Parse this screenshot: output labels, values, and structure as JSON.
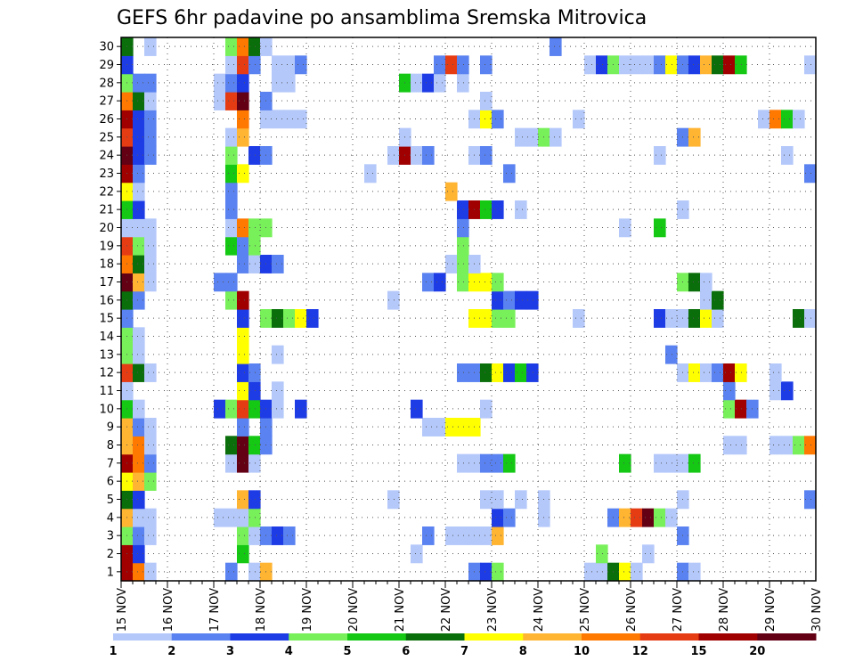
{
  "chart_data": {
    "type": "heatmap",
    "title": "GEFS 6hr padavine po ansamblima Sremska Mitrovica",
    "x_ticks": [
      "15 NOV",
      "16 NOV",
      "17 NOV",
      "18 NOV",
      "19 NOV",
      "20 NOV",
      "21 NOV",
      "22 NOV",
      "23 NOV",
      "24 NOV",
      "25 NOV",
      "26 NOV",
      "27 NOV",
      "28 NOV",
      "29 NOV",
      "30 NOV"
    ],
    "y_ticks": [
      1,
      2,
      3,
      4,
      5,
      6,
      7,
      8,
      9,
      10,
      11,
      12,
      13,
      14,
      15,
      16,
      17,
      18,
      19,
      20,
      21,
      22,
      23,
      24,
      25,
      26,
      27,
      28,
      29,
      30
    ],
    "x_range": [
      15,
      30
    ],
    "y_range": [
      0.5,
      30.5
    ],
    "step_hours": 6,
    "grid": true,
    "legend_placement": "bottom",
    "legend": {
      "labels": [
        "1",
        "2",
        "3",
        "4",
        "5",
        "6",
        "7",
        "8",
        "10",
        "12",
        "15",
        "20"
      ],
      "colors": [
        "#b4c8fa",
        "#5a82f0",
        "#1e3ce6",
        "#78f05a",
        "#14c814",
        "#0a6e0a",
        "#ffff00",
        "#ffb432",
        "#ff7800",
        "#e63c14",
        "#a00000",
        "#640014"
      ]
    },
    "cells": [
      [
        1,
        15.0,
        11
      ],
      [
        1,
        15.25,
        9
      ],
      [
        1,
        15.5,
        1
      ],
      [
        1,
        17.25,
        2
      ],
      [
        1,
        17.75,
        1
      ],
      [
        1,
        18.0,
        8
      ],
      [
        1,
        22.5,
        2
      ],
      [
        1,
        22.75,
        3
      ],
      [
        1,
        23.0,
        4
      ],
      [
        1,
        25.0,
        1
      ],
      [
        1,
        25.25,
        1
      ],
      [
        1,
        25.5,
        6
      ],
      [
        1,
        25.75,
        7
      ],
      [
        1,
        26.0,
        1
      ],
      [
        1,
        27.0,
        2
      ],
      [
        1,
        27.25,
        1
      ],
      [
        2,
        15.0,
        11
      ],
      [
        2,
        15.25,
        3
      ],
      [
        2,
        17.5,
        5
      ],
      [
        2,
        21.25,
        1
      ],
      [
        2,
        25.25,
        4
      ],
      [
        2,
        26.25,
        1
      ],
      [
        3,
        15.0,
        4
      ],
      [
        3,
        15.25,
        2
      ],
      [
        3,
        15.5,
        1
      ],
      [
        3,
        17.5,
        4
      ],
      [
        3,
        17.75,
        1
      ],
      [
        3,
        18.0,
        2
      ],
      [
        3,
        18.25,
        3
      ],
      [
        3,
        18.5,
        2
      ],
      [
        3,
        21.5,
        2
      ],
      [
        3,
        22.0,
        1
      ],
      [
        3,
        22.25,
        1
      ],
      [
        3,
        22.5,
        1
      ],
      [
        3,
        22.75,
        1
      ],
      [
        3,
        23.0,
        8
      ],
      [
        3,
        27.0,
        2
      ],
      [
        4,
        15.0,
        8
      ],
      [
        4,
        15.25,
        1
      ],
      [
        4,
        15.5,
        1
      ],
      [
        4,
        17.0,
        1
      ],
      [
        4,
        17.25,
        1
      ],
      [
        4,
        17.5,
        1
      ],
      [
        4,
        17.75,
        4
      ],
      [
        4,
        23.0,
        3
      ],
      [
        4,
        23.25,
        2
      ],
      [
        4,
        24.0,
        1
      ],
      [
        4,
        25.5,
        2
      ],
      [
        4,
        25.75,
        8
      ],
      [
        4,
        26.0,
        10
      ],
      [
        4,
        26.25,
        12
      ],
      [
        4,
        26.5,
        4
      ],
      [
        4,
        26.75,
        1
      ],
      [
        5,
        15.0,
        6
      ],
      [
        5,
        15.25,
        3
      ],
      [
        5,
        17.5,
        8
      ],
      [
        5,
        17.75,
        3
      ],
      [
        5,
        20.75,
        1
      ],
      [
        5,
        22.75,
        1
      ],
      [
        5,
        23.0,
        1
      ],
      [
        5,
        23.5,
        1
      ],
      [
        5,
        24.0,
        1
      ],
      [
        5,
        27.0,
        1
      ],
      [
        5,
        29.75,
        2
      ],
      [
        6,
        15.0,
        7
      ],
      [
        6,
        15.25,
        8
      ],
      [
        6,
        15.5,
        4
      ],
      [
        7,
        15.0,
        11
      ],
      [
        7,
        15.25,
        9
      ],
      [
        7,
        15.5,
        2
      ],
      [
        7,
        17.25,
        1
      ],
      [
        7,
        17.5,
        12
      ],
      [
        7,
        17.75,
        1
      ],
      [
        7,
        22.25,
        1
      ],
      [
        7,
        22.5,
        1
      ],
      [
        7,
        22.75,
        2
      ],
      [
        7,
        23.0,
        2
      ],
      [
        7,
        23.25,
        5
      ],
      [
        7,
        25.75,
        5
      ],
      [
        7,
        26.5,
        1
      ],
      [
        7,
        26.75,
        1
      ],
      [
        7,
        27.0,
        1
      ],
      [
        7,
        27.25,
        5
      ],
      [
        8,
        15.0,
        8
      ],
      [
        8,
        15.25,
        9
      ],
      [
        8,
        15.5,
        1
      ],
      [
        8,
        17.25,
        6
      ],
      [
        8,
        17.5,
        12
      ],
      [
        8,
        17.75,
        5
      ],
      [
        8,
        18.0,
        2
      ],
      [
        8,
        28.0,
        1
      ],
      [
        8,
        28.25,
        1
      ],
      [
        8,
        29.0,
        1
      ],
      [
        8,
        29.25,
        1
      ],
      [
        8,
        29.5,
        4
      ],
      [
        8,
        29.75,
        9
      ],
      [
        9,
        15.0,
        8
      ],
      [
        9,
        15.25,
        2
      ],
      [
        9,
        15.5,
        1
      ],
      [
        9,
        17.5,
        2
      ],
      [
        9,
        18.0,
        2
      ],
      [
        9,
        21.5,
        1
      ],
      [
        9,
        21.75,
        1
      ],
      [
        9,
        22.0,
        7
      ],
      [
        9,
        22.25,
        7
      ],
      [
        9,
        22.5,
        7
      ],
      [
        10,
        15.0,
        5
      ],
      [
        10,
        15.25,
        1
      ],
      [
        10,
        17.0,
        3
      ],
      [
        10,
        17.25,
        4
      ],
      [
        10,
        17.5,
        10
      ],
      [
        10,
        17.75,
        5
      ],
      [
        10,
        18.0,
        3
      ],
      [
        10,
        18.25,
        1
      ],
      [
        10,
        18.75,
        3
      ],
      [
        10,
        21.25,
        3
      ],
      [
        10,
        22.75,
        1
      ],
      [
        10,
        28.0,
        4
      ],
      [
        10,
        28.25,
        11
      ],
      [
        10,
        28.5,
        2
      ],
      [
        11,
        15.0,
        1
      ],
      [
        11,
        17.5,
        7
      ],
      [
        11,
        17.75,
        3
      ],
      [
        11,
        18.25,
        1
      ],
      [
        11,
        28.0,
        2
      ],
      [
        11,
        29.0,
        1
      ],
      [
        11,
        29.25,
        3
      ],
      [
        12,
        15.0,
        10
      ],
      [
        12,
        15.25,
        6
      ],
      [
        12,
        15.5,
        1
      ],
      [
        12,
        17.5,
        3
      ],
      [
        12,
        17.75,
        2
      ],
      [
        12,
        22.25,
        2
      ],
      [
        12,
        22.5,
        2
      ],
      [
        12,
        22.75,
        6
      ],
      [
        12,
        23.0,
        7
      ],
      [
        12,
        23.25,
        3
      ],
      [
        12,
        23.5,
        5
      ],
      [
        12,
        23.75,
        3
      ],
      [
        12,
        27.0,
        1
      ],
      [
        12,
        27.25,
        7
      ],
      [
        12,
        27.5,
        1
      ],
      [
        12,
        27.75,
        2
      ],
      [
        12,
        28.0,
        11
      ],
      [
        12,
        28.25,
        7
      ],
      [
        12,
        29.0,
        1
      ],
      [
        13,
        15.0,
        4
      ],
      [
        13,
        15.25,
        1
      ],
      [
        13,
        17.5,
        7
      ],
      [
        13,
        18.25,
        1
      ],
      [
        13,
        26.75,
        2
      ],
      [
        14,
        15.0,
        4
      ],
      [
        14,
        15.25,
        1
      ],
      [
        14,
        17.5,
        7
      ],
      [
        15,
        15.0,
        2
      ],
      [
        15,
        17.5,
        3
      ],
      [
        15,
        18.0,
        4
      ],
      [
        15,
        18.25,
        6
      ],
      [
        15,
        18.5,
        4
      ],
      [
        15,
        18.75,
        7
      ],
      [
        15,
        19.0,
        3
      ],
      [
        15,
        22.5,
        7
      ],
      [
        15,
        22.75,
        7
      ],
      [
        15,
        23.0,
        4
      ],
      [
        15,
        23.25,
        4
      ],
      [
        15,
        24.75,
        1
      ],
      [
        15,
        26.5,
        3
      ],
      [
        15,
        26.75,
        1
      ],
      [
        15,
        27.0,
        1
      ],
      [
        15,
        27.25,
        6
      ],
      [
        15,
        27.5,
        7
      ],
      [
        15,
        27.75,
        1
      ],
      [
        15,
        29.5,
        6
      ],
      [
        15,
        29.75,
        1
      ],
      [
        16,
        15.0,
        6
      ],
      [
        16,
        15.25,
        2
      ],
      [
        16,
        17.25,
        4
      ],
      [
        16,
        17.5,
        11
      ],
      [
        16,
        20.75,
        1
      ],
      [
        16,
        23.0,
        3
      ],
      [
        16,
        23.25,
        2
      ],
      [
        16,
        23.5,
        3
      ],
      [
        16,
        23.75,
        3
      ],
      [
        16,
        27.5,
        1
      ],
      [
        16,
        27.75,
        6
      ],
      [
        17,
        15.0,
        12
      ],
      [
        17,
        15.25,
        8
      ],
      [
        17,
        15.5,
        1
      ],
      [
        17,
        17.0,
        2
      ],
      [
        17,
        17.25,
        2
      ],
      [
        17,
        21.5,
        2
      ],
      [
        17,
        21.75,
        3
      ],
      [
        17,
        22.25,
        4
      ],
      [
        17,
        22.5,
        7
      ],
      [
        17,
        22.75,
        7
      ],
      [
        17,
        23.0,
        4
      ],
      [
        17,
        27.0,
        4
      ],
      [
        17,
        27.25,
        6
      ],
      [
        17,
        27.5,
        1
      ],
      [
        18,
        15.0,
        9
      ],
      [
        18,
        15.25,
        6
      ],
      [
        18,
        15.5,
        1
      ],
      [
        18,
        17.5,
        2
      ],
      [
        18,
        17.75,
        1
      ],
      [
        18,
        18.0,
        3
      ],
      [
        18,
        18.25,
        2
      ],
      [
        18,
        22.0,
        1
      ],
      [
        18,
        22.25,
        4
      ],
      [
        18,
        22.5,
        1
      ],
      [
        19,
        15.0,
        10
      ],
      [
        19,
        15.25,
        4
      ],
      [
        19,
        15.5,
        1
      ],
      [
        19,
        17.25,
        5
      ],
      [
        19,
        17.5,
        2
      ],
      [
        19,
        17.75,
        4
      ],
      [
        19,
        22.25,
        4
      ],
      [
        20,
        15.0,
        1
      ],
      [
        20,
        15.25,
        1
      ],
      [
        20,
        15.5,
        1
      ],
      [
        20,
        17.25,
        1
      ],
      [
        20,
        17.5,
        9
      ],
      [
        20,
        17.75,
        4
      ],
      [
        20,
        18.0,
        4
      ],
      [
        20,
        22.25,
        2
      ],
      [
        20,
        25.75,
        1
      ],
      [
        20,
        26.5,
        5
      ],
      [
        21,
        15.0,
        5
      ],
      [
        21,
        15.25,
        3
      ],
      [
        21,
        17.25,
        2
      ],
      [
        21,
        22.25,
        3
      ],
      [
        21,
        22.5,
        11
      ],
      [
        21,
        22.75,
        5
      ],
      [
        21,
        23.0,
        3
      ],
      [
        21,
        23.5,
        1
      ],
      [
        21,
        27.0,
        1
      ],
      [
        22,
        15.0,
        7
      ],
      [
        22,
        15.25,
        1
      ],
      [
        22,
        17.25,
        2
      ],
      [
        22,
        22.0,
        8
      ],
      [
        23,
        15.0,
        11
      ],
      [
        23,
        15.25,
        2
      ],
      [
        23,
        17.25,
        5
      ],
      [
        23,
        17.5,
        7
      ],
      [
        23,
        20.25,
        1
      ],
      [
        23,
        23.25,
        2
      ],
      [
        23,
        29.75,
        2
      ],
      [
        24,
        15.0,
        12
      ],
      [
        24,
        15.25,
        3
      ],
      [
        24,
        15.5,
        2
      ],
      [
        24,
        17.25,
        4
      ],
      [
        24,
        17.75,
        3
      ],
      [
        24,
        18.0,
        2
      ],
      [
        24,
        20.75,
        1
      ],
      [
        24,
        21.0,
        11
      ],
      [
        24,
        21.25,
        1
      ],
      [
        24,
        21.5,
        2
      ],
      [
        24,
        22.5,
        1
      ],
      [
        24,
        22.75,
        2
      ],
      [
        24,
        26.5,
        1
      ],
      [
        24,
        29.25,
        1
      ],
      [
        25,
        15.0,
        10
      ],
      [
        25,
        15.25,
        3
      ],
      [
        25,
        15.5,
        2
      ],
      [
        25,
        17.25,
        1
      ],
      [
        25,
        17.5,
        8
      ],
      [
        25,
        21.0,
        1
      ],
      [
        25,
        23.5,
        1
      ],
      [
        25,
        23.75,
        1
      ],
      [
        25,
        24.0,
        4
      ],
      [
        25,
        24.25,
        1
      ],
      [
        25,
        27.0,
        2
      ],
      [
        25,
        27.25,
        8
      ],
      [
        26,
        15.0,
        11
      ],
      [
        26,
        15.25,
        3
      ],
      [
        26,
        15.5,
        2
      ],
      [
        26,
        17.5,
        9
      ],
      [
        26,
        18.0,
        1
      ],
      [
        26,
        18.25,
        1
      ],
      [
        26,
        18.5,
        1
      ],
      [
        26,
        18.75,
        1
      ],
      [
        26,
        22.5,
        1
      ],
      [
        26,
        22.75,
        7
      ],
      [
        26,
        23.0,
        2
      ],
      [
        26,
        24.75,
        1
      ],
      [
        26,
        28.75,
        1
      ],
      [
        26,
        29.0,
        9
      ],
      [
        26,
        29.25,
        5
      ],
      [
        26,
        29.5,
        1
      ],
      [
        27,
        15.0,
        9
      ],
      [
        27,
        15.25,
        6
      ],
      [
        27,
        15.5,
        1
      ],
      [
        27,
        17.0,
        1
      ],
      [
        27,
        17.25,
        10
      ],
      [
        27,
        17.5,
        12
      ],
      [
        27,
        18.0,
        2
      ],
      [
        27,
        22.75,
        1
      ],
      [
        28,
        15.0,
        4
      ],
      [
        28,
        15.25,
        2
      ],
      [
        28,
        15.5,
        2
      ],
      [
        28,
        17.0,
        1
      ],
      [
        28,
        17.25,
        2
      ],
      [
        28,
        17.5,
        3
      ],
      [
        28,
        18.25,
        1
      ],
      [
        28,
        18.5,
        1
      ],
      [
        28,
        21.0,
        5
      ],
      [
        28,
        21.25,
        1
      ],
      [
        28,
        21.5,
        3
      ],
      [
        28,
        21.75,
        1
      ],
      [
        28,
        22.25,
        1
      ],
      [
        29,
        15.0,
        3
      ],
      [
        29,
        17.25,
        1
      ],
      [
        29,
        17.5,
        10
      ],
      [
        29,
        17.75,
        2
      ],
      [
        29,
        18.25,
        1
      ],
      [
        29,
        18.5,
        1
      ],
      [
        29,
        18.75,
        2
      ],
      [
        29,
        21.75,
        2
      ],
      [
        29,
        22.0,
        10
      ],
      [
        29,
        22.25,
        2
      ],
      [
        29,
        22.75,
        2
      ],
      [
        29,
        25.0,
        1
      ],
      [
        29,
        25.25,
        3
      ],
      [
        29,
        25.5,
        4
      ],
      [
        29,
        25.75,
        1
      ],
      [
        29,
        26.0,
        1
      ],
      [
        29,
        26.25,
        1
      ],
      [
        29,
        26.5,
        2
      ],
      [
        29,
        26.75,
        7
      ],
      [
        29,
        27.0,
        2
      ],
      [
        29,
        27.25,
        3
      ],
      [
        29,
        27.5,
        8
      ],
      [
        29,
        27.75,
        6
      ],
      [
        29,
        28.0,
        11
      ],
      [
        29,
        28.25,
        5
      ],
      [
        29,
        29.75,
        1
      ],
      [
        30,
        15.0,
        6
      ],
      [
        30,
        15.5,
        1
      ],
      [
        30,
        17.25,
        4
      ],
      [
        30,
        17.5,
        9
      ],
      [
        30,
        17.75,
        6
      ],
      [
        30,
        18.0,
        1
      ],
      [
        30,
        24.25,
        2
      ]
    ]
  }
}
